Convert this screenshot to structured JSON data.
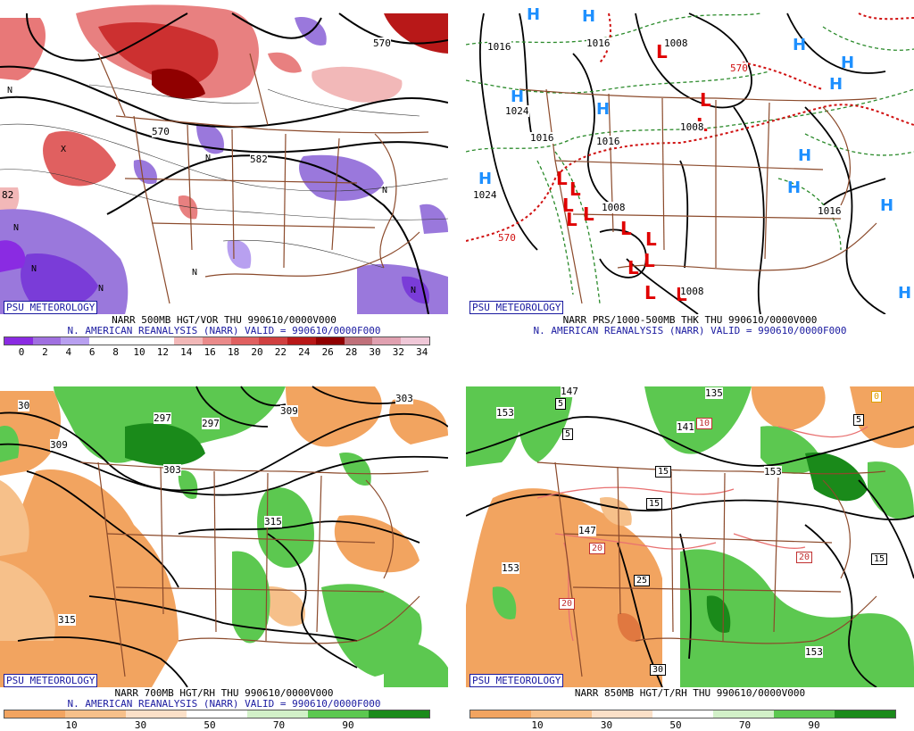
{
  "panels": [
    {
      "badge": "PSU METEOROLOGY",
      "title_line1": "NARR 500MB HGT/VOR THU 990610/0000V000",
      "title_line2": "N. AMERICAN REANALYSIS (NARR) VALID = 990610/0000F000",
      "contour_labels": [
        "570",
        "582",
        "570",
        "82"
      ],
      "markers": [
        "N",
        "N",
        "N",
        "N",
        "N",
        "X",
        "N",
        "N",
        "N"
      ],
      "colorbar": {
        "colors": [
          "#8a2be2",
          "#a070e0",
          "#b8a0f0",
          "#ffffff",
          "#ffffff",
          "#ffffff",
          "#f2b8b8",
          "#ea8a8a",
          "#e06060",
          "#d04040",
          "#b81818",
          "#900000",
          "#c0707a",
          "#e0a0b0",
          "#f0c8d8"
        ],
        "ticks": [
          "0",
          "2",
          "4",
          "6",
          "8",
          "10",
          "12",
          "14",
          "16",
          "18",
          "20",
          "22",
          "24",
          "26",
          "28",
          "30",
          "32",
          "34"
        ]
      }
    },
    {
      "badge": "PSU METEOROLOGY",
      "title_line1": "NARR PRS/1000-500MB THK THU 990610/0000V000",
      "title_line2": "N. AMERICAN REANALYSIS (NARR) VALID = 990610/0000F000",
      "contour_labels": [
        "1016",
        "1016",
        "1008",
        "1024",
        "1016",
        "1016",
        "1024",
        "1008",
        "570",
        "1008",
        "1016",
        "1008",
        "570"
      ],
      "highs": [
        "H",
        "H",
        "H",
        "H",
        "H",
        "H",
        "H",
        "H",
        "H",
        "H",
        "H",
        "H"
      ],
      "lows": [
        "L",
        "L",
        "L",
        "L",
        "L",
        "L",
        "L",
        "L",
        "L",
        "L",
        "L",
        "L",
        "L",
        "L"
      ]
    },
    {
      "badge": "PSU METEOROLOGY",
      "title_line1": "NARR 700MB HGT/RH THU 990610/0000V000",
      "title_line2": "N. AMERICAN REANALYSIS (NARR) VALID = 990610/0000F000",
      "contour_labels": [
        "30",
        "309",
        "297",
        "297",
        "309",
        "303",
        "315",
        "315",
        "303"
      ],
      "colorbar": {
        "colors": [
          "#f2a460",
          "#f6c08a",
          "#fbe0c8",
          "#ffffff",
          "#d2f0c8",
          "#5cc850",
          "#1a8a1a"
        ],
        "ticks": [
          "10",
          "30",
          "50",
          "70",
          "90"
        ]
      }
    },
    {
      "badge": "PSU METEOROLOGY",
      "title_line1": "NARR 850MB HGT/T/RH THU 990610/0000V000",
      "contour_labels": [
        "153",
        "147",
        "153",
        "153",
        "141",
        "135",
        "147",
        "153"
      ],
      "temp_boxes": [
        "5",
        "5",
        "10",
        "15",
        "20",
        "25",
        "20",
        "30",
        "20",
        "15",
        "5",
        "15",
        "0"
      ],
      "colorbar": {
        "colors": [
          "#f2a460",
          "#f6c08a",
          "#fbe0c8",
          "#ffffff",
          "#d2f0c8",
          "#5cc850",
          "#1a8a1a"
        ],
        "ticks": [
          "10",
          "30",
          "50",
          "70",
          "90"
        ]
      }
    }
  ]
}
